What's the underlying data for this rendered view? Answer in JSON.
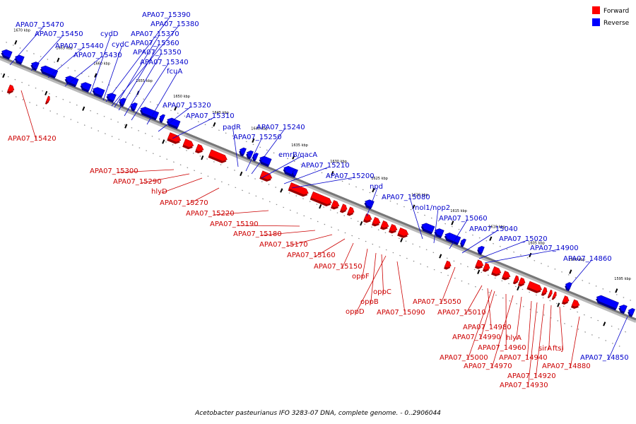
{
  "caption": "Acetobacter pasteurianus IFO 3283-07 DNA, complete genome. - 0..2906044",
  "legend": [
    {
      "label": "Forward",
      "color": "#ff0000"
    },
    {
      "label": "Reverse",
      "color": "#0000ff"
    }
  ],
  "colors": {
    "forward": "#ff0000",
    "reverse": "#0000ff",
    "forward_label": "#cc0000",
    "reverse_label": "#0000cc",
    "backbone": "#777777"
  },
  "ticks": [
    "1670 kbp",
    "1665 kbp",
    "1660 kbp",
    "1655 kbp",
    "1650 kbp",
    "1645 kbp",
    "1640 kbp",
    "1635 kbp",
    "1630 kbp",
    "1625 kbp",
    "1620 kbp",
    "1615 kbp",
    "1610 kbp",
    "1605 kbp",
    "1600 kbp",
    "1595 kbp"
  ],
  "reverse_labels": [
    "APA07_15470",
    "APA07_15450",
    "APA07_15440",
    "APA07_15430",
    "cydD",
    "cydC",
    "APA07_15390",
    "APA07_15380",
    "APA07_15370",
    "APA07_15360",
    "APA07_15350",
    "APA07_15340",
    "fcuA",
    "APA07_15320",
    "APA07_15310",
    "padR",
    "APA07_15250",
    "APA07_15240",
    "emrB/qacA",
    "APA07_15210",
    "APA07_15200",
    "npd",
    "APA07_15080",
    "nol1/nop2",
    "APA07_15060",
    "APA07_15040",
    "APA07_15020",
    "APA07_14900",
    "APA07_14860",
    "APA07_14850"
  ],
  "forward_labels": [
    "APA07_15420",
    "APA07_15300",
    "APA07_15290",
    "hlyD",
    "APA07_15270",
    "APA07_15220",
    "APA07_15190",
    "APA07_15180",
    "APA07_15170",
    "APA07_15160",
    "APA07_15150",
    "oppF",
    "oppC",
    "oppB",
    "oppD",
    "APA07_15090",
    "APA07_15050",
    "APA07_15010",
    "APA07_14980",
    "APA07_14990",
    "hlyA",
    "APA07_14960",
    "APA07_15000",
    "APA07_14940",
    "APA07_14970",
    "sirA",
    "ftsJ",
    "APA07_14880",
    "APA07_14920",
    "APA07_14930"
  ]
}
